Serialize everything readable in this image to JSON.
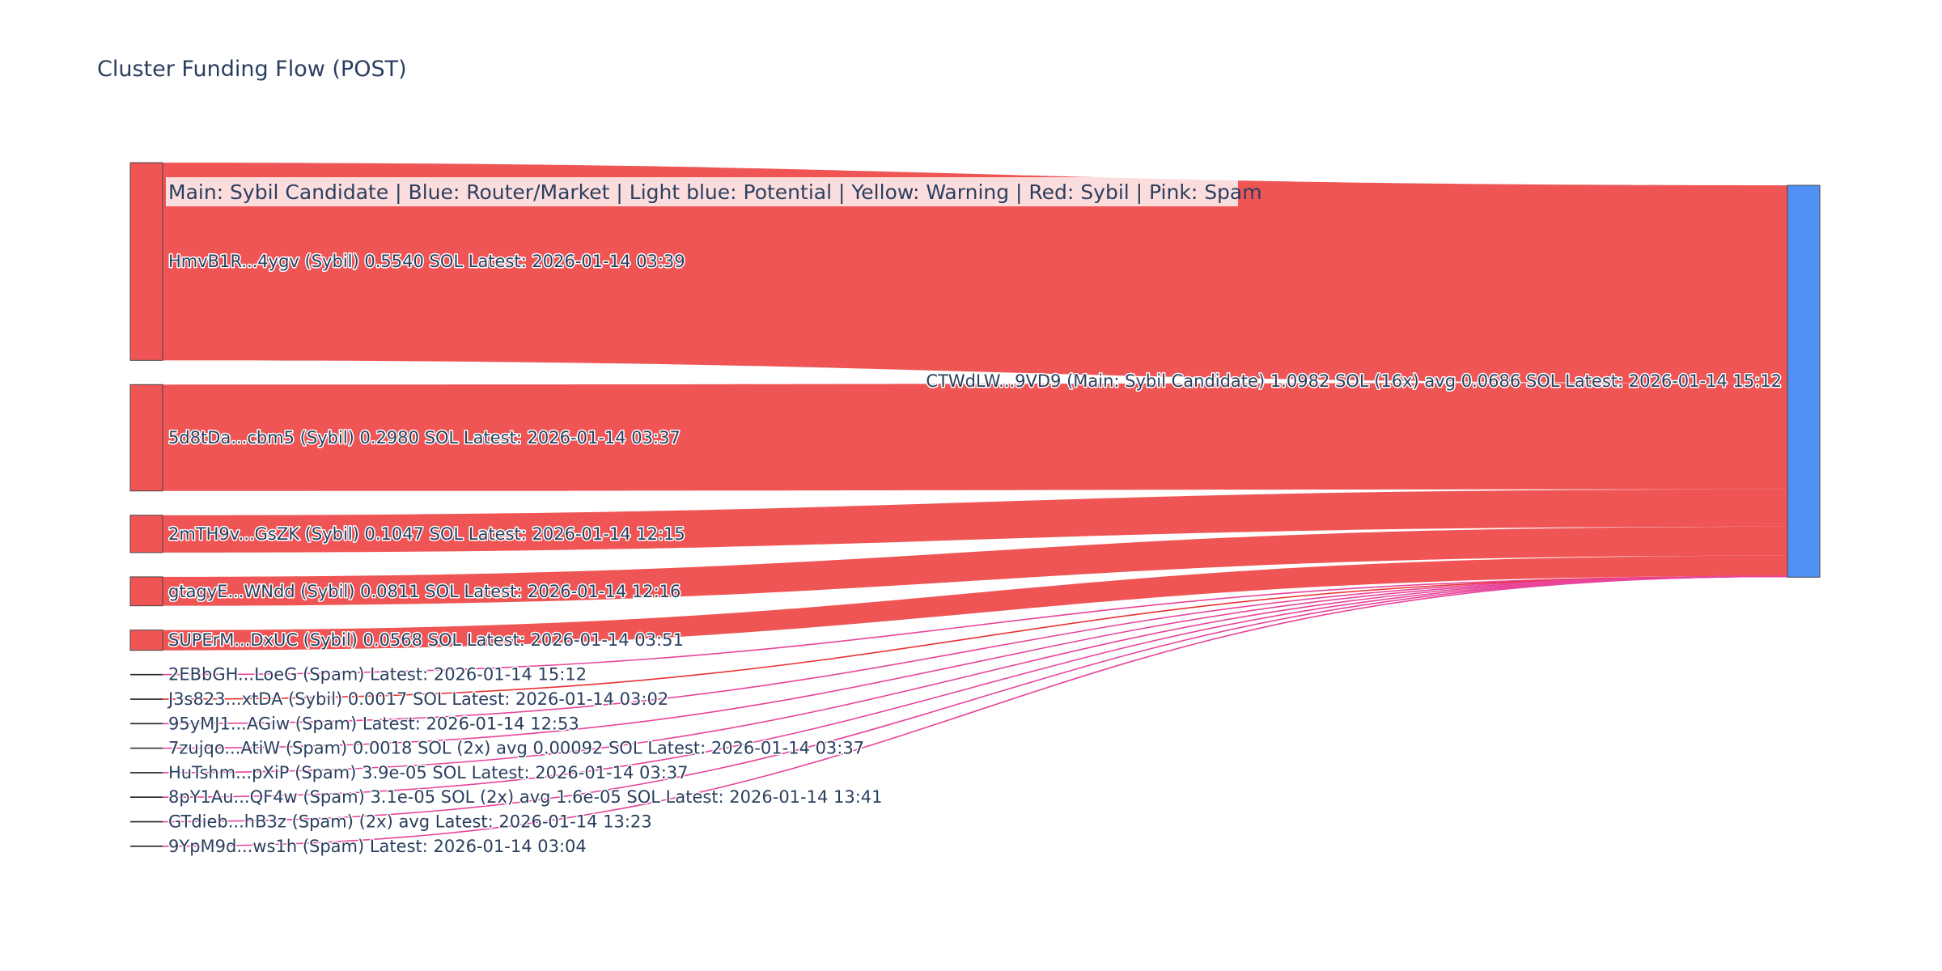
{
  "title": "Cluster Funding Flow (POST)",
  "legend": "Main: Sybil Candidate  |  Blue: Router/Market | Light blue: Potential | Yellow: Warning | Red: Sybil | Pink: Spam",
  "colors": {
    "sybil": "#ef5555",
    "spam": "#e8449a",
    "main": "#5090f5",
    "sybil_link": "#ea3030"
  },
  "target": {
    "label": "CTWdLW...9VD9 (Main: Sybil Candidate) 1.0982 SOL (16x) avg 0.0686 SOL Latest: 2026-01-14 15:12",
    "type": "main"
  },
  "sources": [
    {
      "label": "HmvB1R...4ygv (Sybil) 0.5540 SOL Latest: 2026-01-14 03:39",
      "type": "sybil",
      "value": 0.554
    },
    {
      "label": "5d8tDa...cbm5 (Sybil) 0.2980 SOL Latest: 2026-01-14 03:37",
      "type": "sybil",
      "value": 0.298
    },
    {
      "label": "2mTH9v...GsZK (Sybil) 0.1047 SOL Latest: 2026-01-14 12:15",
      "type": "sybil",
      "value": 0.1047
    },
    {
      "label": "gtagyE...WNdd (Sybil) 0.0811 SOL Latest: 2026-01-14 12:16",
      "type": "sybil",
      "value": 0.0811
    },
    {
      "label": "SUPErM...DxUC (Sybil) 0.0568 SOL Latest: 2026-01-14 03:51",
      "type": "sybil",
      "value": 0.0568
    },
    {
      "label": "2EBbGH...LoeG (Spam) Latest: 2026-01-14 15:12",
      "type": "spam",
      "value": 0
    },
    {
      "label": "J3s823...xtDA (Sybil) 0.0017 SOL Latest: 2026-01-14 03:02",
      "type": "sybil",
      "value": 0.0017
    },
    {
      "label": "95yMJ1...AGiw (Spam) Latest: 2026-01-14 12:53",
      "type": "spam",
      "value": 0
    },
    {
      "label": "7zujqo...AtiW (Spam) 0.0018 SOL (2x) avg 0.00092 SOL Latest: 2026-01-14 03:37",
      "type": "spam",
      "value": 0.0018
    },
    {
      "label": "HuTshm...pXiP (Spam) 3.9e-05 SOL Latest: 2026-01-14 03:37",
      "type": "spam",
      "value": 3.9e-05
    },
    {
      "label": "8pY1Au...QF4w (Spam) 3.1e-05 SOL (2x) avg 1.6e-05 SOL Latest: 2026-01-14 13:41",
      "type": "spam",
      "value": 3.1e-05
    },
    {
      "label": "GTdieb...hB3z (Spam)  (2x) avg  Latest: 2026-01-14 13:23",
      "type": "spam",
      "value": 0
    },
    {
      "label": "9YpM9d...ws1h (Spam) Latest: 2026-01-14 03:04",
      "type": "spam",
      "value": 0
    }
  ]
}
